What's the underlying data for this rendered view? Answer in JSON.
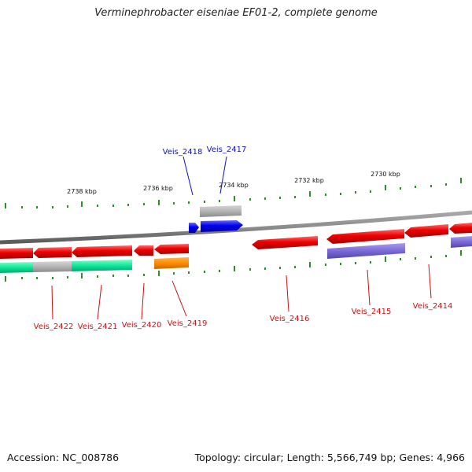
{
  "title": "Verminephrobacter eiseniae EF01-2, complete genome",
  "accession": "Accession: NC_008786",
  "summary": "Topology: circular; Length: 5,566,749 bp; Genes: 4,966",
  "colors": {
    "forward_gene": "#0000ff",
    "reverse_gene": "#ff0000",
    "forward_label": "#1010c0",
    "reverse_label": "#cc1010",
    "tick": "#2e8b2e",
    "backbone": "#888888",
    "gray_feature": "#b4b4b4",
    "green_feature": "#20e8a0",
    "purple_feature": "#8070d8",
    "orange_feature": "#ff8c00"
  },
  "scale_labels": [
    "2738 kbp",
    "2736 kbp",
    "2734 kbp",
    "2732 kbp",
    "2730 kbp"
  ],
  "forward_genes": [
    "Veis_2418",
    "Veis_2417"
  ],
  "reverse_genes": [
    "Veis_2422",
    "Veis_2421",
    "Veis_2420",
    "Veis_2419",
    "Veis_2416",
    "Veis_2415",
    "Veis_2414"
  ]
}
